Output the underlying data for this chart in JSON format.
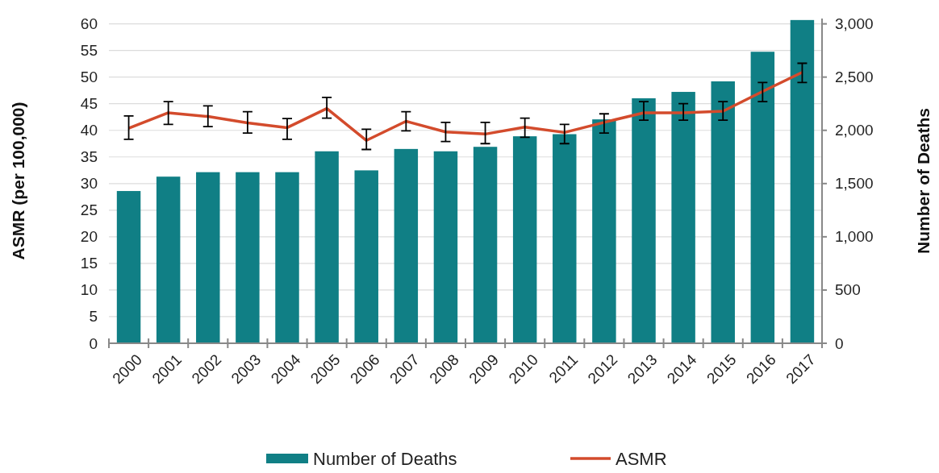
{
  "chart_data": {
    "type": "bar",
    "ylabel": "ASMR (per 100,000)",
    "y2label": "Number of Deaths",
    "categories": [
      "2000",
      "2001",
      "2002",
      "2003",
      "2004",
      "2005",
      "2006",
      "2007",
      "2008",
      "2009",
      "2010",
      "2011",
      "2012",
      "2013",
      "2014",
      "2015",
      "2016",
      "2017"
    ],
    "series": [
      {
        "name": "Number of Deaths",
        "axis": "y2",
        "color": "#107f85",
        "values": [
          1430,
          1565,
          1607,
          1607,
          1607,
          1803,
          1624,
          1825,
          1803,
          1845,
          1944,
          1964,
          2103,
          2301,
          2361,
          2460,
          2738,
          3036
        ]
      },
      {
        "name": "ASMR",
        "type": "line",
        "axis": "y",
        "color": "#d34b2c",
        "values": [
          40.4,
          43.3,
          42.6,
          41.4,
          40.5,
          44.1,
          38.1,
          41.7,
          39.7,
          39.3,
          40.6,
          39.6,
          41.5,
          43.3,
          43.3,
          43.6,
          47.3,
          50.9
        ],
        "errors": [
          [
            38.3,
            42.7
          ],
          [
            41.1,
            45.4
          ],
          [
            40.7,
            44.6
          ],
          [
            39.5,
            43.5
          ],
          [
            38.3,
            42.2
          ],
          [
            42.3,
            46.2
          ],
          [
            36.4,
            40.2
          ],
          [
            39.9,
            43.5
          ],
          [
            37.9,
            41.5
          ],
          [
            37.5,
            41.5
          ],
          [
            38.7,
            42.3
          ],
          [
            37.5,
            41.1
          ],
          [
            39.5,
            43.1
          ],
          [
            41.9,
            45.4
          ],
          [
            41.9,
            45.0
          ],
          [
            41.9,
            45.4
          ],
          [
            45.4,
            49.0
          ],
          [
            49.0,
            52.6
          ]
        ]
      }
    ],
    "ylim": [
      0,
      61
    ],
    "yticks": [
      0,
      5,
      10,
      15,
      20,
      25,
      30,
      35,
      40,
      45,
      50,
      55,
      60
    ],
    "y2lim": [
      0,
      3050
    ],
    "y2ticks": [
      {
        "value": 0,
        "label": "0"
      },
      {
        "value": 500,
        "label": "500"
      },
      {
        "value": 1000,
        "label": "1,000"
      },
      {
        "value": 1500,
        "label": "1,500"
      },
      {
        "value": 2000,
        "label": "2,000"
      },
      {
        "value": 2500,
        "label": "2,500"
      },
      {
        "value": 3000,
        "label": "3,000"
      }
    ],
    "grid": "y",
    "legend": "bottom",
    "marker": "none",
    "line_style": "solid"
  }
}
